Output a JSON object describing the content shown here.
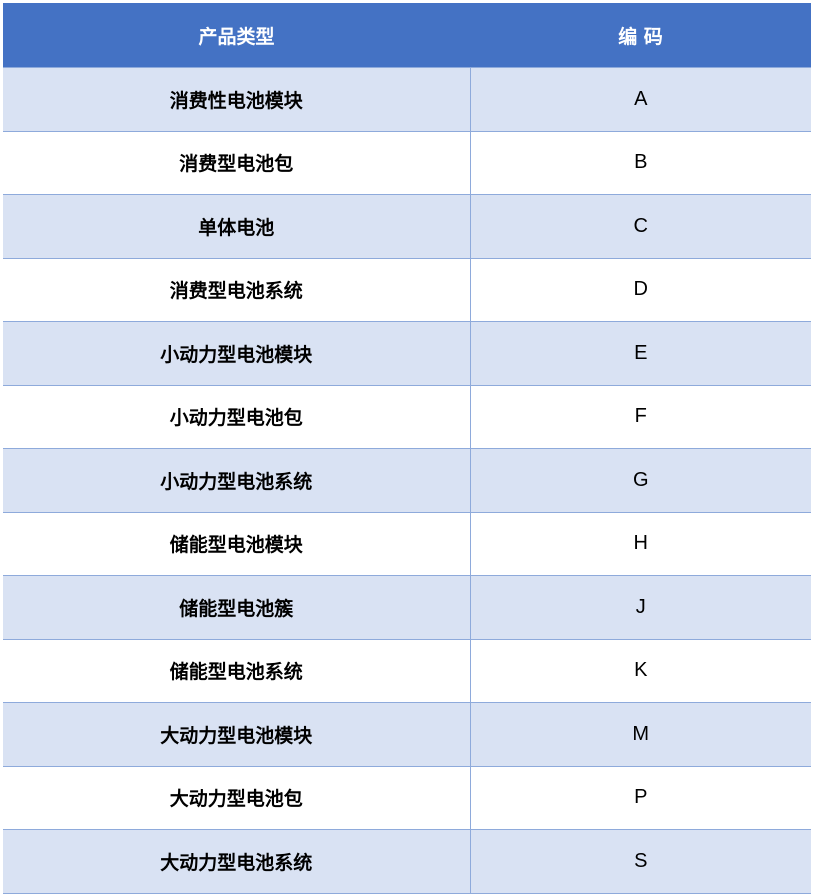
{
  "table": {
    "headers": [
      "产品类型",
      "编 码"
    ],
    "rows": [
      [
        "消费性电池模块",
        "A"
      ],
      [
        "消费型电池包",
        "B"
      ],
      [
        "单体电池",
        "C"
      ],
      [
        "消费型电池系统",
        "D"
      ],
      [
        "小动力型电池模块",
        "E"
      ],
      [
        "小动力型电池包",
        "F"
      ],
      [
        "小动力型电池系统",
        "G"
      ],
      [
        "储能型电池模块",
        "H"
      ],
      [
        "储能型电池簇",
        "J"
      ],
      [
        "储能型电池系统",
        "K"
      ],
      [
        "大动力型电池模块",
        "M"
      ],
      [
        "大动力型电池包",
        "P"
      ],
      [
        "大动力型电池系统",
        "S"
      ]
    ]
  },
  "colors": {
    "header_bg": "#4472C4",
    "band_bg": "#D9E2F3",
    "border": "#8EAADB"
  }
}
